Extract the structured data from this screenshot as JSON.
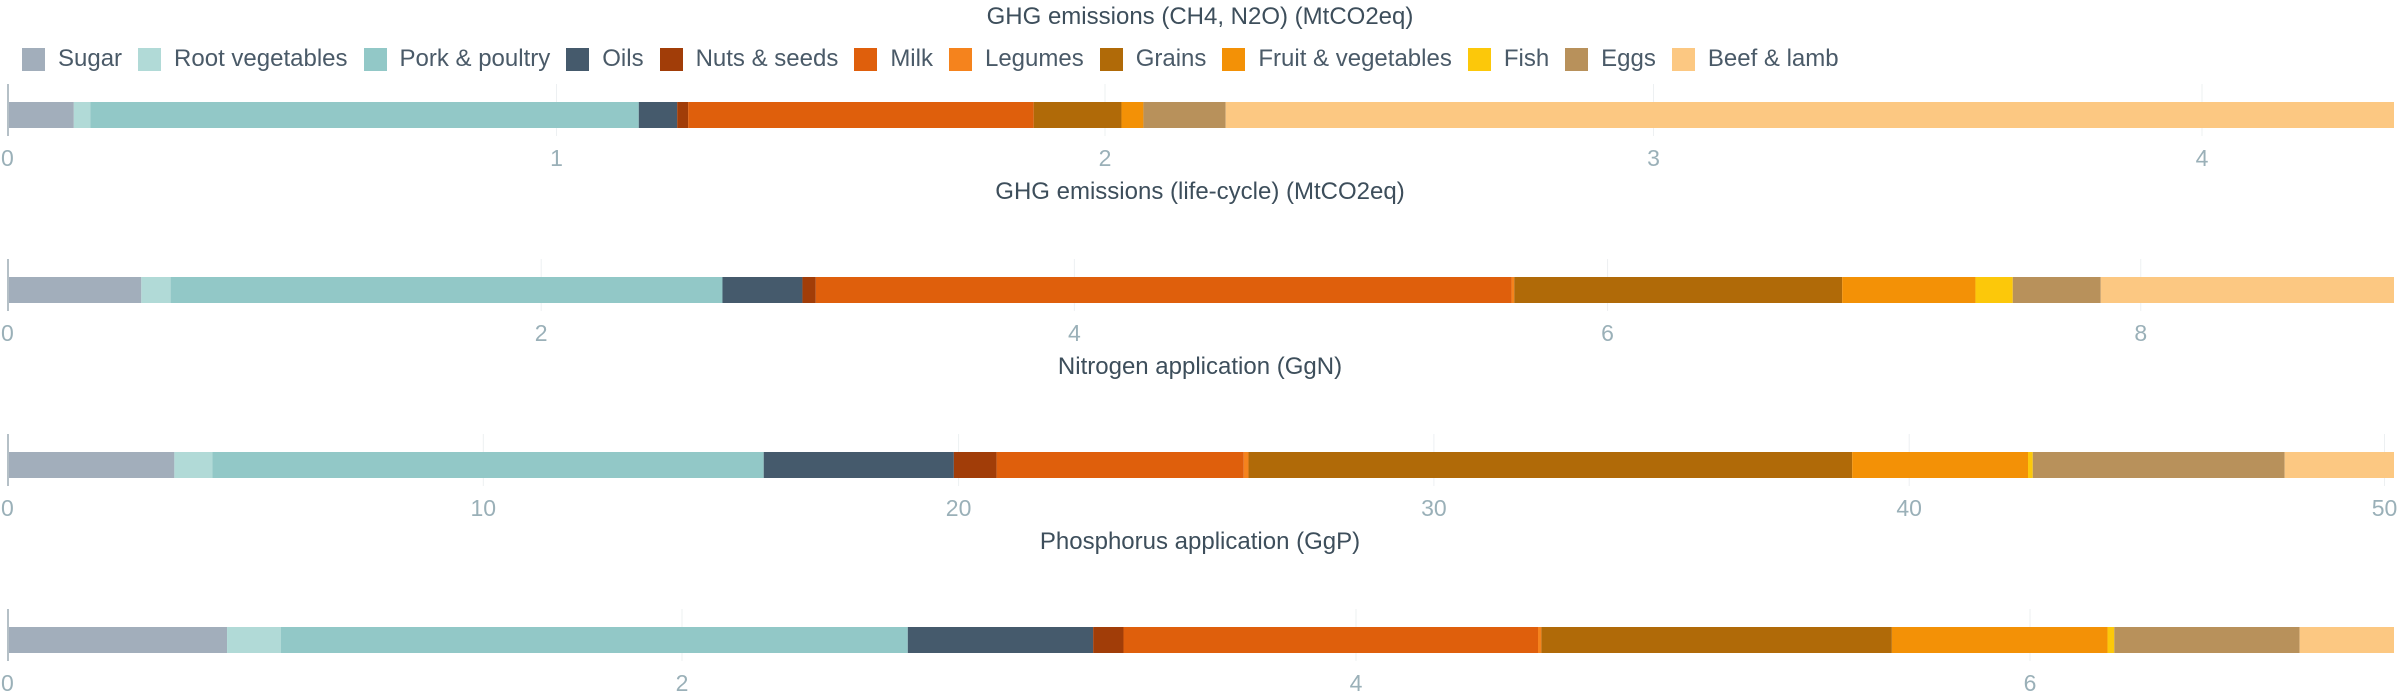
{
  "legend": [
    {
      "name": "Sugar",
      "color": "#a2aebb"
    },
    {
      "name": "Root vegetables",
      "color": "#b1dad7"
    },
    {
      "name": "Pork & poultry",
      "color": "#92c8c7"
    },
    {
      "name": "Oils",
      "color": "#455a6c"
    },
    {
      "name": "Nuts & seeds",
      "color": "#a13d08"
    },
    {
      "name": "Milk",
      "color": "#df5f0c"
    },
    {
      "name": "Legumes",
      "color": "#f5831d"
    },
    {
      "name": "Grains",
      "color": "#b06a08"
    },
    {
      "name": "Fruit & vegetables",
      "color": "#f39106"
    },
    {
      "name": "Fish",
      "color": "#fcc80a"
    },
    {
      "name": "Eggs",
      "color": "#b8915b"
    },
    {
      "name": "Beef & lamb",
      "color": "#fcc882"
    }
  ],
  "chart_data": [
    {
      "type": "bar",
      "orientation": "horizontal",
      "stacked": true,
      "title": "GHG emissions (CH4, N2O) (MtCO2eq)",
      "xlim": [
        0,
        4.35
      ],
      "ticks": [
        0,
        1,
        2,
        3,
        4
      ],
      "series": [
        {
          "name": "Sugar",
          "value": 0.12
        },
        {
          "name": "Root vegetables",
          "value": 0.03
        },
        {
          "name": "Pork & poultry",
          "value": 1.0
        },
        {
          "name": "Oils",
          "value": 0.07
        },
        {
          "name": "Nuts & seeds",
          "value": 0.02
        },
        {
          "name": "Milk",
          "value": 0.63
        },
        {
          "name": "Legumes",
          "value": 0.0
        },
        {
          "name": "Grains",
          "value": 0.16
        },
        {
          "name": "Fruit & vegetables",
          "value": 0.04
        },
        {
          "name": "Fish",
          "value": 0.0
        },
        {
          "name": "Eggs",
          "value": 0.15
        },
        {
          "name": "Beef & lamb",
          "value": 2.13
        }
      ]
    },
    {
      "type": "bar",
      "orientation": "horizontal",
      "stacked": true,
      "title": "GHG emissions (life-cycle) (MtCO2eq)",
      "xlim": [
        0,
        8.95
      ],
      "ticks": [
        0,
        2,
        4,
        6,
        8
      ],
      "series": [
        {
          "name": "Sugar",
          "value": 0.5
        },
        {
          "name": "Root vegetables",
          "value": 0.11
        },
        {
          "name": "Pork & poultry",
          "value": 2.07
        },
        {
          "name": "Oils",
          "value": 0.3
        },
        {
          "name": "Nuts & seeds",
          "value": 0.05
        },
        {
          "name": "Milk",
          "value": 2.61
        },
        {
          "name": "Legumes",
          "value": 0.01
        },
        {
          "name": "Grains",
          "value": 1.23
        },
        {
          "name": "Fruit & vegetables",
          "value": 0.5
        },
        {
          "name": "Fish",
          "value": 0.14
        },
        {
          "name": "Eggs",
          "value": 0.33
        },
        {
          "name": "Beef & lamb",
          "value": 1.1
        }
      ]
    },
    {
      "type": "bar",
      "orientation": "horizontal",
      "stacked": true,
      "title": "Nitrogen application (GgN)",
      "xlim": [
        0,
        50.2
      ],
      "ticks": [
        0,
        10,
        20,
        30,
        40,
        50
      ],
      "series": [
        {
          "name": "Sugar",
          "value": 3.5
        },
        {
          "name": "Root vegetables",
          "value": 0.8
        },
        {
          "name": "Pork & poultry",
          "value": 11.6
        },
        {
          "name": "Oils",
          "value": 4.0
        },
        {
          "name": "Nuts & seeds",
          "value": 0.9
        },
        {
          "name": "Milk",
          "value": 5.2
        },
        {
          "name": "Legumes",
          "value": 0.1
        },
        {
          "name": "Grains",
          "value": 12.7
        },
        {
          "name": "Fruit & vegetables",
          "value": 3.7
        },
        {
          "name": "Fish",
          "value": 0.1
        },
        {
          "name": "Eggs",
          "value": 5.3
        },
        {
          "name": "Beef & lamb",
          "value": 2.3
        }
      ]
    },
    {
      "type": "bar",
      "orientation": "horizontal",
      "stacked": true,
      "title": "Phosphorus application (GgP)",
      "xlim": [
        0,
        7.08
      ],
      "ticks": [
        0,
        2,
        4,
        6
      ],
      "series": [
        {
          "name": "Sugar",
          "value": 0.65
        },
        {
          "name": "Root vegetables",
          "value": 0.16
        },
        {
          "name": "Pork & poultry",
          "value": 1.86
        },
        {
          "name": "Oils",
          "value": 0.55
        },
        {
          "name": "Nuts & seeds",
          "value": 0.09
        },
        {
          "name": "Milk",
          "value": 1.23
        },
        {
          "name": "Legumes",
          "value": 0.01
        },
        {
          "name": "Grains",
          "value": 1.04
        },
        {
          "name": "Fruit & vegetables",
          "value": 0.64
        },
        {
          "name": "Fish",
          "value": 0.02
        },
        {
          "name": "Eggs",
          "value": 0.55
        },
        {
          "name": "Beef & lamb",
          "value": 0.28
        }
      ]
    }
  ]
}
